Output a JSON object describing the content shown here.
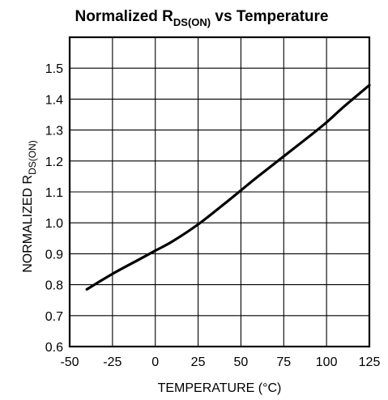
{
  "chart_data": {
    "type": "line",
    "title_main": "Normalized R",
    "title_sub": "DS(ON)",
    "title_rest": " vs Temperature",
    "xlabel": "TEMPERATURE (°C)",
    "ylabel_main": "NORMALIZED R",
    "ylabel_sub": "DS(ON)",
    "xlim": [
      -50,
      125
    ],
    "ylim": [
      0.6,
      1.6
    ],
    "xticks": [
      -50,
      -25,
      0,
      25,
      50,
      75,
      100,
      125
    ],
    "xtick_labels": [
      "-50",
      "-25",
      "0",
      "25",
      "50",
      "75",
      "100",
      "125"
    ],
    "yticks": [
      0.6,
      0.7,
      0.8,
      0.9,
      1.0,
      1.1,
      1.2,
      1.3,
      1.4,
      1.5
    ],
    "ytick_labels": [
      "0.6",
      "0.7",
      "0.8",
      "0.9",
      "1.0",
      "1.1",
      "1.2",
      "1.3",
      "1.4",
      "1.5"
    ],
    "grid": true,
    "series": [
      {
        "x": [
          -40,
          -25,
          -10,
          0,
          10,
          25,
          40,
          50,
          60,
          75,
          90,
          100,
          110,
          125
        ],
        "y": [
          0.785,
          0.835,
          0.88,
          0.91,
          0.94,
          0.995,
          1.06,
          1.105,
          1.15,
          1.215,
          1.28,
          1.325,
          1.375,
          1.445
        ]
      }
    ]
  }
}
